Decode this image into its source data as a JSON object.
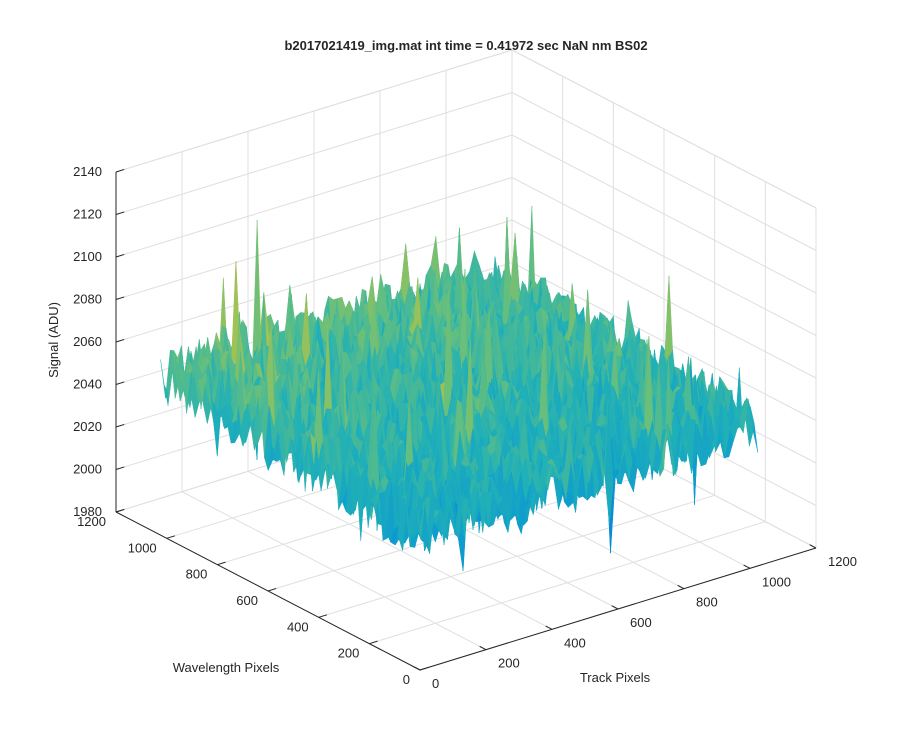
{
  "chart_data": {
    "type": "surface",
    "title": "b2017021419_img.mat int time = 0.41972 sec  NaN nm BS02",
    "xlabel": "Track Pixels",
    "ylabel": "Wavelength Pixels",
    "zlabel": "Signal (ADU)",
    "xlim": [
      0,
      1200
    ],
    "ylim": [
      0,
      1200
    ],
    "zlim": [
      1980,
      2140
    ],
    "xticks": [
      "0",
      "200",
      "400",
      "600",
      "800",
      "1000",
      "1200"
    ],
    "yticks": [
      "0",
      "200",
      "400",
      "600",
      "800",
      "1000",
      "1200"
    ],
    "zticks": [
      "1980",
      "2000",
      "2020",
      "2040",
      "2060",
      "2080",
      "2100",
      "2120",
      "2140"
    ],
    "grid": true,
    "colormap": "parula",
    "surface": {
      "x_range": [
        0,
        1024
      ],
      "y_range": [
        0,
        1024
      ],
      "z_mean": 2050,
      "z_min": 1995,
      "z_max": 2125
    }
  },
  "colors": {
    "axis": "#262626",
    "grid": "#dfdfdf",
    "parula_low": "#0b7fd8",
    "parula_mid": "#20b0b8",
    "parula_high": "#e8c23a"
  }
}
